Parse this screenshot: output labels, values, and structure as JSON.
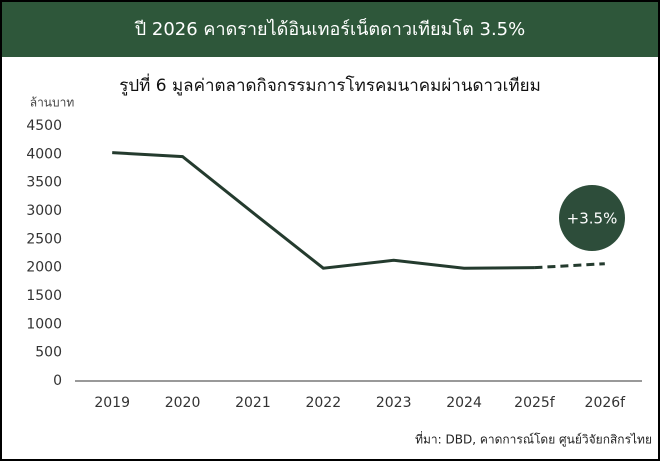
{
  "header": {
    "title": "ปี 2026 คาดรายได้อินเทอร์เน็ตดาวเทียมโต 3.5%"
  },
  "chart_data": {
    "type": "line",
    "title": "รูปที่ 6 มูลค่าตลาดกิจกรรมการโทรคมนาคมผ่านดาวเทียม",
    "y_label": "ล้านบาท",
    "categories": [
      "2019",
      "2020",
      "2021",
      "2022",
      "2023",
      "2024",
      "2025f",
      "2026f"
    ],
    "series": [
      {
        "color": "#243b2e",
        "dashed": false,
        "values": [
          4030,
          3960,
          2970,
          1990,
          2130,
          1990,
          2000,
          null
        ]
      },
      {
        "color": "#243b2e",
        "dashed": true,
        "values": [
          null,
          null,
          null,
          null,
          null,
          null,
          2000,
          2070
        ]
      }
    ],
    "ylim": [
      0,
      4500
    ],
    "yticks": [
      0,
      500,
      1000,
      1500,
      2000,
      2500,
      3000,
      3500,
      4000,
      4500
    ],
    "grid": false,
    "annotation": {
      "text": "+3.5%",
      "color": "#2d4d3a"
    },
    "source": "ที่มา: DBD, คาดการณ์โดย ศูนย์วิจัยกสิกรไทย"
  }
}
